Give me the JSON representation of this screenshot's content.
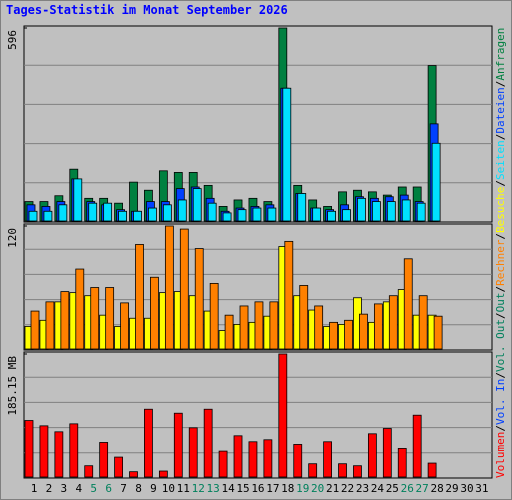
{
  "chart_data": {
    "type": "bar",
    "title": "Tages-Statistik im Monat September 2026",
    "title_color": "#0000FF",
    "categories": [
      "1",
      "2",
      "3",
      "4",
      "5",
      "6",
      "7",
      "8",
      "9",
      "10",
      "11",
      "12",
      "13",
      "14",
      "15",
      "16",
      "17",
      "18",
      "19",
      "20",
      "21",
      "22",
      "23",
      "24",
      "25",
      "26",
      "27",
      "28",
      "29",
      "30",
      "31"
    ],
    "highlight_categories": [
      "5",
      "6",
      "12",
      "13",
      "19",
      "20",
      "26",
      "27"
    ],
    "highlight_color": "#00805C",
    "grid": true,
    "panels": [
      {
        "ylim": [
          0,
          596
        ],
        "yticks": [
          596
        ],
        "series": [
          {
            "name": "Anfragen",
            "color": "#008040",
            "values": [
              60,
              60,
              78,
              160,
              70,
              70,
              55,
              120,
              95,
              155,
              150,
              150,
              110,
              45,
              65,
              70,
              60,
              596,
              110,
              65,
              45,
              90,
              95,
              90,
              80,
              105,
              105,
              480,
              null,
              null,
              null
            ]
          },
          {
            "name": "Dateien",
            "color": "#0040FF",
            "values": [
              50,
              45,
              60,
              130,
              60,
              50,
              35,
              30,
              60,
              60,
              100,
              105,
              70,
              30,
              40,
              45,
              50,
              410,
              85,
              40,
              35,
              50,
              75,
              70,
              75,
              80,
              60,
              300,
              null,
              null,
              null
            ]
          },
          {
            "name": "Seiten",
            "color": "#00E0FF",
            "values": [
              30,
              30,
              50,
              130,
              55,
              55,
              30,
              30,
              40,
              50,
              65,
              100,
              55,
              25,
              35,
              40,
              40,
              410,
              85,
              40,
              30,
              35,
              70,
              60,
              60,
              65,
              55,
              240,
              null,
              null,
              null
            ]
          }
        ]
      },
      {
        "ylim": [
          0,
          120
        ],
        "yticks": [
          120
        ],
        "series": [
          {
            "name": "Besuche",
            "color": "#FFFF00",
            "values": [
              22,
              28,
              46,
              55,
              52,
              33,
              22,
              30,
              30,
              55,
              56,
              52,
              37,
              18,
              24,
              26,
              32,
              100,
              52,
              38,
              22,
              24,
              50,
              26,
              46,
              58,
              33,
              33,
              null,
              null,
              null
            ]
          },
          {
            "name": "Rechner",
            "color": "#FF8000",
            "values": [
              37,
              46,
              56,
              78,
              60,
              60,
              45,
              102,
              70,
              120,
              117,
              98,
              64,
              33,
              42,
              46,
              46,
              105,
              62,
              42,
              26,
              28,
              34,
              44,
              52,
              88,
              52,
              32,
              null,
              null,
              null
            ]
          }
        ]
      },
      {
        "ylim": [
          0,
          185.15
        ],
        "yticks": [
          {
            "value": 185.15,
            "label": "185.15 MB"
          }
        ],
        "series": [
          {
            "name": "Volumen",
            "color": "#FF0000",
            "values": [
              85,
              77,
              68,
              80,
              17,
              52,
              30,
              8,
              102,
              9,
              96,
              74,
              102,
              39,
              62,
              53,
              56,
              185.15,
              49,
              20,
              53,
              20,
              17,
              65,
              73,
              43,
              93,
              21,
              null,
              null,
              null
            ]
          }
        ]
      }
    ],
    "legend_extra": [
      {
        "text": "Vol. In",
        "color": "#0040FF"
      },
      {
        "text": "Vol. Out",
        "color": "#00805C"
      },
      {
        "text": "Out",
        "color": "#00805C"
      }
    ],
    "legend_separator": "/"
  }
}
